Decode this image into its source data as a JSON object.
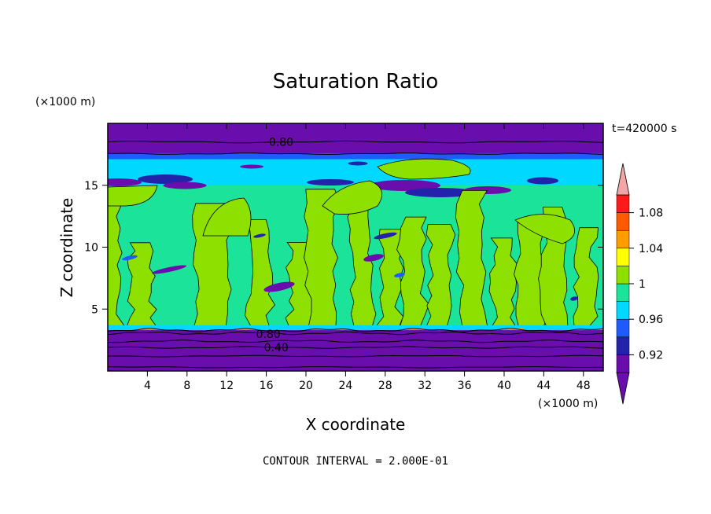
{
  "chart_data": {
    "type": "heatmap",
    "title": "Saturation Ratio",
    "xlabel": "X coordinate",
    "ylabel": "Z coordinate",
    "x_unit_label": "(×1000 m)",
    "y_unit_label": "(×1000 m)",
    "time_label": "t=420000 s",
    "footer": "CONTOUR INTERVAL = 2.000E-01",
    "xlim": [
      0,
      50
    ],
    "ylim": [
      0,
      20
    ],
    "x_ticks": [
      4,
      8,
      12,
      16,
      20,
      24,
      28,
      32,
      36,
      40,
      44,
      48
    ],
    "y_ticks": [
      5,
      10,
      15
    ],
    "contour_labels": [
      {
        "text": "0.80",
        "x": 17.5,
        "z": 18.5
      },
      {
        "text": "0.80",
        "x": 16.2,
        "z": 3.0
      },
      {
        "text": "0.40",
        "x": 17.0,
        "z": 1.9
      }
    ],
    "colorbar": {
      "levels": [
        0.9,
        0.92,
        0.94,
        0.96,
        0.98,
        1.0,
        1.02,
        1.04,
        1.06,
        1.08,
        1.1
      ],
      "tick_labels": [
        "0.92",
        "0.96",
        "1",
        "1.04",
        "1.08"
      ],
      "tick_values": [
        0.92,
        0.96,
        1.0,
        1.04,
        1.08
      ],
      "colors": [
        "#6a0dad",
        "#2222aa",
        "#1e5cff",
        "#00d8ff",
        "#1be39a",
        "#8ee000",
        "#ffff00",
        "#ff9c00",
        "#ff5a00",
        "#ff1a1a"
      ],
      "under_color": "#6a0dad",
      "over_color": "#f2a6a6"
    },
    "regions": [
      {
        "zmin": 0.0,
        "zmax": 3.3,
        "value": "below 0.90",
        "color": "#6a0dad"
      },
      {
        "zmin": 3.3,
        "zmax": 3.7,
        "value": "0.98-1.00",
        "color": "#1be39a"
      },
      {
        "zmin": 3.7,
        "zmax": 15.0,
        "value": "0.98-1.02 mixed",
        "color": "#1be39a"
      },
      {
        "zmin": 15.0,
        "zmax": 17.5,
        "value": "0.90-0.98 layer",
        "color": "#00d8ff"
      },
      {
        "zmin": 17.5,
        "zmax": 20.0,
        "value": "below 0.90",
        "color": "#6a0dad"
      }
    ]
  }
}
